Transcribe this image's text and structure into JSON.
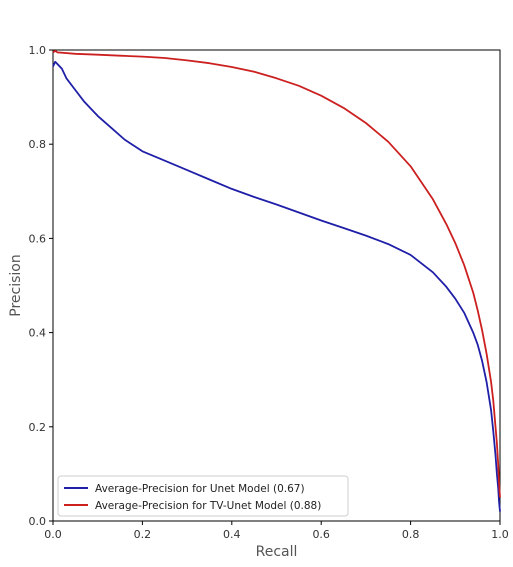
{
  "chart_data": {
    "type": "line",
    "title": "",
    "xlabel": "Recall",
    "ylabel": "Precision",
    "xlim": [
      0,
      1
    ],
    "ylim": [
      0,
      1
    ],
    "x_ticks": [
      "0.0",
      "0.2",
      "0.4",
      "0.6",
      "0.8",
      "1.0"
    ],
    "y_ticks": [
      "0.0",
      "0.2",
      "0.4",
      "0.6",
      "0.8",
      "1.0"
    ],
    "grid": false,
    "legend_position": "bottom-left",
    "series": [
      {
        "name": "Average-Precision for Unet Model (0.67)",
        "color": "#1f1fa8",
        "x": [
          0.0,
          0.005,
          0.01,
          0.02,
          0.03,
          0.05,
          0.07,
          0.1,
          0.13,
          0.16,
          0.2,
          0.25,
          0.3,
          0.35,
          0.4,
          0.45,
          0.5,
          0.55,
          0.6,
          0.65,
          0.7,
          0.75,
          0.8,
          0.85,
          0.88,
          0.9,
          0.92,
          0.94,
          0.95,
          0.96,
          0.97,
          0.98,
          0.985,
          0.99,
          0.993,
          0.996,
          0.998,
          1.0
        ],
        "y": [
          0.965,
          0.975,
          0.97,
          0.96,
          0.94,
          0.915,
          0.89,
          0.86,
          0.835,
          0.81,
          0.785,
          0.765,
          0.745,
          0.725,
          0.705,
          0.688,
          0.672,
          0.655,
          0.638,
          0.622,
          0.606,
          0.588,
          0.565,
          0.528,
          0.497,
          0.472,
          0.442,
          0.4,
          0.375,
          0.34,
          0.295,
          0.235,
          0.19,
          0.14,
          0.1,
          0.07,
          0.04,
          0.02
        ]
      },
      {
        "name": "Average-Precision for TV-Unet Model (0.88)",
        "color": "#cc2020",
        "x": [
          0.0,
          0.005,
          0.01,
          0.05,
          0.1,
          0.15,
          0.2,
          0.25,
          0.3,
          0.35,
          0.4,
          0.45,
          0.5,
          0.55,
          0.6,
          0.65,
          0.7,
          0.75,
          0.8,
          0.85,
          0.88,
          0.9,
          0.92,
          0.94,
          0.95,
          0.96,
          0.97,
          0.98,
          0.985,
          0.99,
          0.993,
          0.996,
          0.998,
          1.0
        ],
        "y": [
          0.995,
          0.998,
          0.995,
          0.992,
          0.99,
          0.988,
          0.986,
          0.983,
          0.978,
          0.972,
          0.964,
          0.954,
          0.94,
          0.924,
          0.903,
          0.877,
          0.845,
          0.805,
          0.753,
          0.683,
          0.63,
          0.59,
          0.543,
          0.485,
          0.448,
          0.405,
          0.355,
          0.295,
          0.255,
          0.2,
          0.165,
          0.12,
          0.08,
          0.05
        ]
      }
    ]
  }
}
